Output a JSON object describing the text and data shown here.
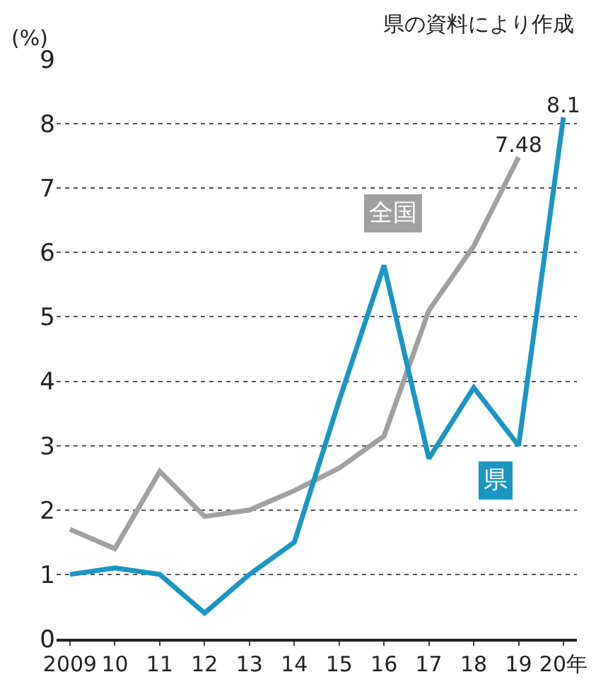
{
  "chart_data": {
    "type": "line",
    "ylabel": "(%)",
    "annotations": [
      "県の資料により作成"
    ],
    "categories": [
      "2009",
      "10",
      "11",
      "12",
      "13",
      "14",
      "15",
      "16",
      "17",
      "18",
      "19",
      "20年"
    ],
    "ylim": [
      0,
      9
    ],
    "yticks": [
      0,
      1,
      2,
      3,
      4,
      5,
      6,
      7,
      8,
      9
    ],
    "grid": "y",
    "legend": false,
    "marker": "none",
    "line_style": "solid",
    "series": [
      {
        "name": "全国",
        "color": "#a0a0a0",
        "values": [
          1.7,
          1.4,
          2.6,
          1.9,
          2.0,
          2.3,
          2.65,
          3.15,
          5.1,
          6.1,
          7.48,
          null
        ],
        "value_labels": [
          null,
          null,
          null,
          null,
          null,
          null,
          null,
          null,
          null,
          null,
          "7.48",
          null
        ]
      },
      {
        "name": "県",
        "color": "#1a96c3",
        "values": [
          1.0,
          1.1,
          1.0,
          0.4,
          1.0,
          1.5,
          3.7,
          5.8,
          2.8,
          3.9,
          3.0,
          8.1
        ],
        "value_labels": [
          null,
          null,
          null,
          null,
          null,
          null,
          null,
          null,
          null,
          null,
          null,
          "8.1"
        ]
      }
    ]
  }
}
